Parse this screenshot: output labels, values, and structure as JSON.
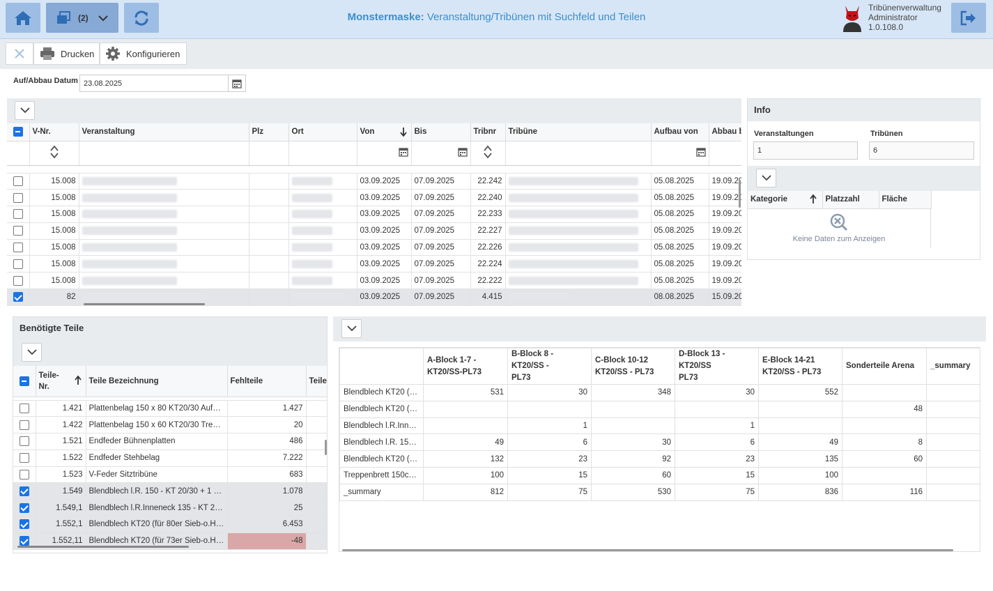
{
  "header": {
    "title_bold": "Monstermaske:",
    "title_rest": " Veranstaltung/Tribünen mit Suchfeld und Teilen",
    "window_count": "(2)",
    "user_line1": "Tribünenverwaltung",
    "user_line2": "Administrator",
    "user_line3": "1.0.108.0"
  },
  "toolbar": {
    "print_label": "Drucken",
    "config_label": "Konfigurieren"
  },
  "date_filter": {
    "label": "Auf/Abbau Datum",
    "value": "23.08.2025"
  },
  "events_grid": {
    "columns": [
      "V-Nr.",
      "Veranstaltung",
      "Plz",
      "Ort",
      "Von",
      "Bis",
      "Tribnr",
      "Tribüne",
      "Aufbau von",
      "Abbau b"
    ],
    "rows": [
      {
        "vnr": "15.008",
        "von": "03.09.2025",
        "bis": "07.09.2025",
        "tribnr": "22.242",
        "aufbau": "05.08.2025",
        "abbau": "19.09.20",
        "checked": false
      },
      {
        "vnr": "15.008",
        "von": "03.09.2025",
        "bis": "07.09.2025",
        "tribnr": "22.240",
        "aufbau": "05.08.2025",
        "abbau": "19.09.20",
        "checked": false
      },
      {
        "vnr": "15.008",
        "von": "03.09.2025",
        "bis": "07.09.2025",
        "tribnr": "22.233",
        "aufbau": "05.08.2025",
        "abbau": "19.09.20",
        "checked": false
      },
      {
        "vnr": "15.008",
        "von": "03.09.2025",
        "bis": "07.09.2025",
        "tribnr": "22.227",
        "aufbau": "05.08.2025",
        "abbau": "19.09.20",
        "checked": false
      },
      {
        "vnr": "15.008",
        "von": "03.09.2025",
        "bis": "07.09.2025",
        "tribnr": "22.226",
        "aufbau": "05.08.2025",
        "abbau": "19.09.20",
        "checked": false
      },
      {
        "vnr": "15.008",
        "von": "03.09.2025",
        "bis": "07.09.2025",
        "tribnr": "22.224",
        "aufbau": "05.08.2025",
        "abbau": "19.09.20",
        "checked": false
      },
      {
        "vnr": "15.008",
        "von": "03.09.2025",
        "bis": "07.09.2025",
        "tribnr": "22.222",
        "aufbau": "05.08.2025",
        "abbau": "19.09.20",
        "checked": false
      },
      {
        "vnr": "82",
        "von": "03.09.2025",
        "bis": "07.09.2025",
        "tribnr": "4.415",
        "aufbau": "08.08.2025",
        "abbau": "15.09.20",
        "checked": true
      }
    ]
  },
  "info": {
    "title": "Info",
    "veranstaltungen_label": "Veranstaltungen",
    "veranstaltungen_value": "1",
    "tribuenen_label": "Tribünen",
    "tribuenen_value": "6",
    "columns": [
      "Kategorie",
      "Platzzahl",
      "Fläche"
    ],
    "empty_text": "Keine Daten zum Anzeigen"
  },
  "parts": {
    "title": "Benötigte Teile",
    "col_nr_line1": "Teile-",
    "col_nr_line2": "Nr.",
    "col_desc": "Teile Bezeichnung",
    "col_missing": "Fehlteile",
    "col_teile": "Teile",
    "rows": [
      {
        "nr": "1.421",
        "desc": "Plattenbelag 150 x 80 KT20/30 Aufga…",
        "missing": "1.427",
        "checked": false
      },
      {
        "nr": "1.422",
        "desc": "Plattenbelag 150 x 60 KT20/30 Treppen",
        "missing": "20",
        "checked": false
      },
      {
        "nr": "1.521",
        "desc": "Endfeder Bühnenplatten",
        "missing": "486",
        "checked": false
      },
      {
        "nr": "1.522",
        "desc": "Endfeder Stehbelag",
        "missing": "7.222",
        "checked": false
      },
      {
        "nr": "1.523",
        "desc": "V-Feder Sitztribüne",
        "missing": "683",
        "checked": false
      },
      {
        "nr": "1.549",
        "desc": "Blendblech l.R. 150 - KT 20/30 + 1 Spax",
        "missing": "1.078",
        "checked": true
      },
      {
        "nr": "1.549,1",
        "desc": "Blendblech l.R.Inneneck 135 - KT 20/…",
        "missing": "25",
        "checked": true
      },
      {
        "nr": "1.552,1",
        "desc": "Blendblech KT20 (für 80er Sieb-o.Ho…",
        "missing": "6.453",
        "checked": true
      },
      {
        "nr": "1.552,11",
        "desc": "Blendblech KT20 (für 73er Sieb-o.Ho…",
        "missing": "-48",
        "checked": true,
        "negative": true
      }
    ]
  },
  "pivot": {
    "columns": [
      [
        "A-Block 1-7 -",
        "KT20/SS-PL73"
      ],
      [
        "B-Block 8 - KT20/SS -",
        "PL73"
      ],
      [
        "C-Block 10-12",
        "KT20/SS - PL73"
      ],
      [
        "D-Block 13 - KT20/SS",
        "PL73"
      ],
      [
        "E-Block 14-21",
        "KT20/SS - PL73"
      ],
      [
        "Sonderteile Arena",
        ""
      ],
      [
        "_summary",
        ""
      ]
    ],
    "rows": [
      {
        "label": "Blendblech KT20 (f…",
        "values": [
          "531",
          "30",
          "348",
          "30",
          "552",
          "",
          ""
        ]
      },
      {
        "label": "Blendblech KT20 (f…",
        "values": [
          "",
          "",
          "",
          "",
          "",
          "48",
          ""
        ]
      },
      {
        "label": "Blendblech l.R.Inne…",
        "values": [
          "",
          "1",
          "",
          "1",
          "",
          "",
          ""
        ]
      },
      {
        "label": "Blendblech l.R. 150 …",
        "values": [
          "49",
          "6",
          "30",
          "6",
          "49",
          "8",
          ""
        ]
      },
      {
        "label": "Blendblech KT20 (f…",
        "values": [
          "132",
          "23",
          "92",
          "23",
          "135",
          "60",
          ""
        ]
      },
      {
        "label": "Treppenbrett 150c…",
        "values": [
          "100",
          "15",
          "60",
          "15",
          "100",
          "",
          ""
        ]
      },
      {
        "label": "_summary",
        "values": [
          "812",
          "75",
          "530",
          "75",
          "836",
          "116",
          ""
        ]
      }
    ]
  },
  "colors": {
    "accent": "#1a73e8",
    "header_bg": "#d7e6f6",
    "button_bg": "#9dbde4",
    "title": "#3a8ed0",
    "negative_bg": "#d9a7a7"
  }
}
